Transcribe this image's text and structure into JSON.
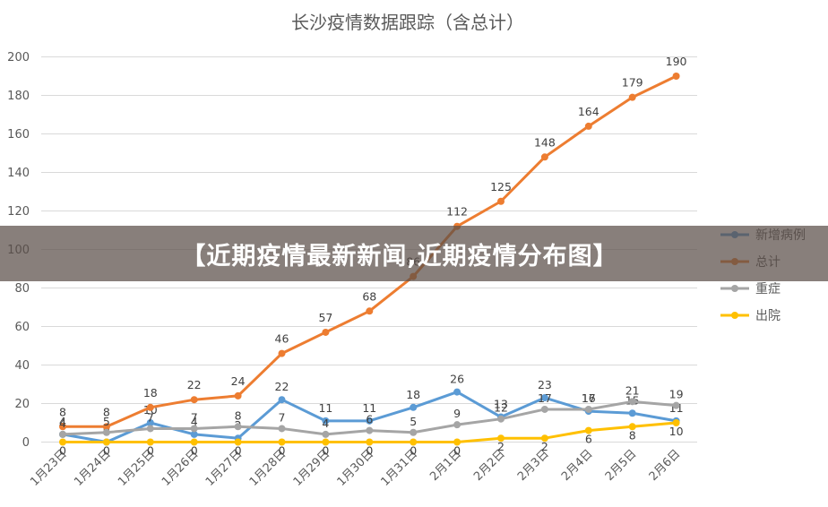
{
  "banner": {
    "text": "【近期疫情最新新闻,近期疫情分布图】"
  },
  "chart_data": {
    "type": "line",
    "title": "长沙疫情数据跟踪（含总计）",
    "categories": [
      "1月23日",
      "1月24日",
      "1月25日",
      "1月26日",
      "1月27日",
      "1月28日",
      "1月29日",
      "1月30日",
      "1月31日",
      "2月1日",
      "2月2日",
      "2月3日",
      "2月4日",
      "2月5日",
      "2月6日"
    ],
    "ylim": [
      0,
      200
    ],
    "yticks": [
      0,
      20,
      40,
      60,
      80,
      100,
      120,
      140,
      160,
      180,
      200
    ],
    "grid": true,
    "legend_position": "right",
    "series": [
      {
        "name": "新增病例",
        "color": "#5b9bd5",
        "values": [
          4,
          0,
          10,
          4,
          2,
          22,
          11,
          11,
          18,
          26,
          13,
          23,
          16,
          15,
          11
        ]
      },
      {
        "name": "总计",
        "color": "#ed7d31",
        "values": [
          8,
          8,
          18,
          22,
          24,
          46,
          57,
          68,
          86,
          112,
          125,
          148,
          164,
          179,
          190
        ]
      },
      {
        "name": "重症",
        "color": "#a5a5a5",
        "values": [
          4,
          5,
          7,
          7,
          8,
          7,
          4,
          6,
          5,
          9,
          12,
          17,
          17,
          21,
          19
        ]
      },
      {
        "name": "出院",
        "color": "#ffc000",
        "values": [
          0,
          0,
          0,
          0,
          0,
          0,
          0,
          0,
          0,
          0,
          2,
          2,
          6,
          8,
          10
        ]
      }
    ]
  }
}
